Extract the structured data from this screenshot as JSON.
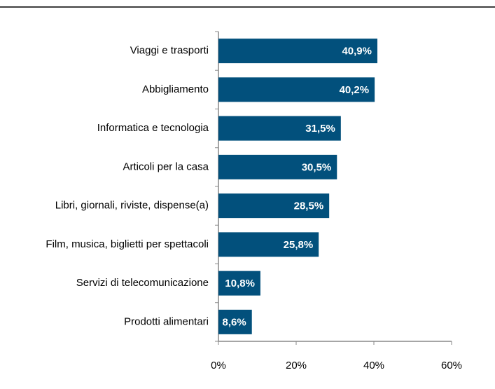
{
  "chart_data": {
    "type": "bar",
    "orientation": "horizontal",
    "categories": [
      "Viaggi e trasporti",
      "Abbigliamento",
      "Informatica e tecnologia",
      "Articoli per la casa",
      "Libri, giornali, riviste, dispense(a)",
      "Film, musica, biglietti per spettacoli",
      "Servizi di telecomunicazione",
      "Prodotti alimentari"
    ],
    "values": [
      40.9,
      40.2,
      31.5,
      30.5,
      28.5,
      25.8,
      10.8,
      8.6
    ],
    "value_labels": [
      "40,9%",
      "40,2%",
      "31,5%",
      "30,5%",
      "28,5%",
      "25,8%",
      "10,8%",
      "8,6%"
    ],
    "color": "#02507c",
    "xlim": [
      0,
      60
    ],
    "xticks": [
      {
        "value": 0,
        "label": "0%"
      },
      {
        "value": 20,
        "label": "20%"
      },
      {
        "value": 40,
        "label": "40%"
      },
      {
        "value": 60,
        "label": "60%"
      }
    ],
    "grid": false
  }
}
